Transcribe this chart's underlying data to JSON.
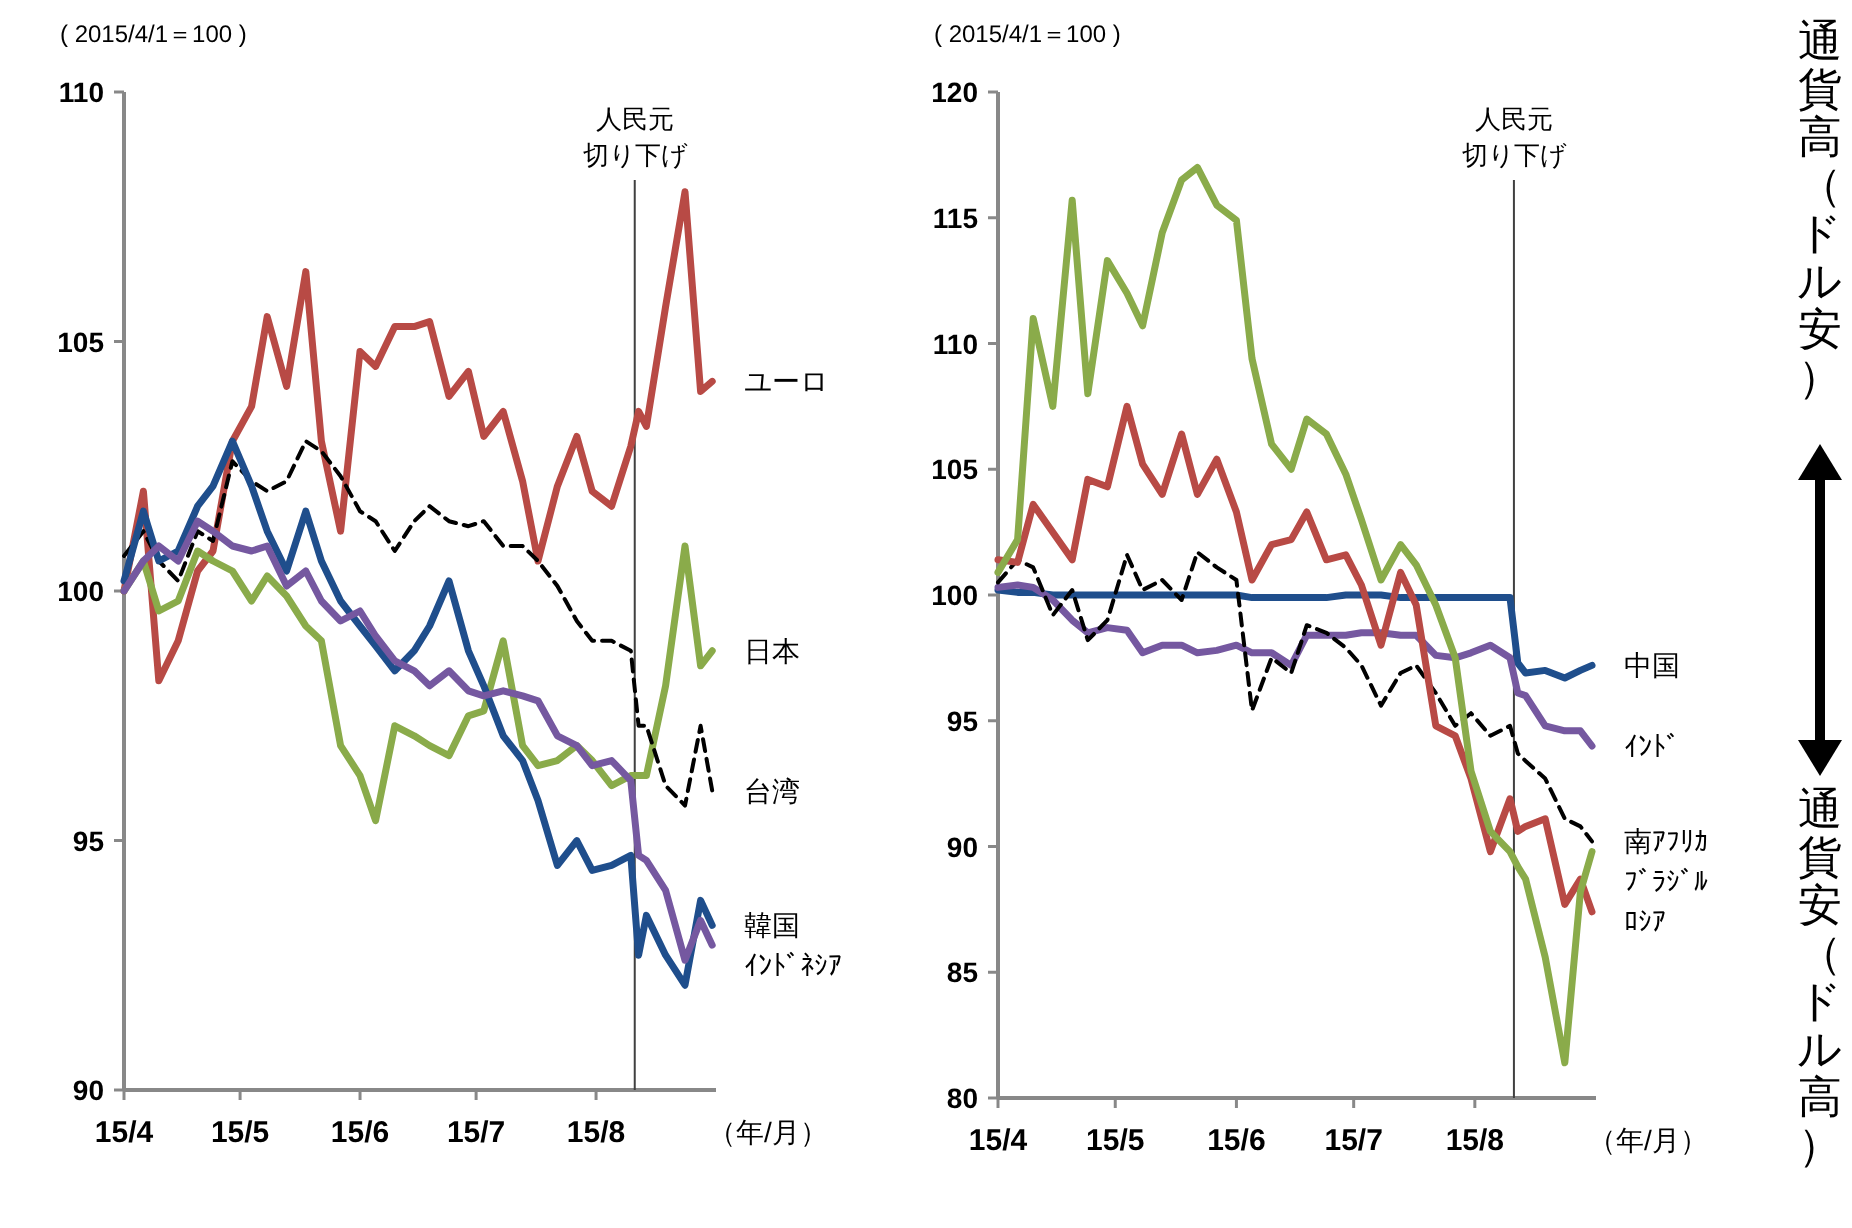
{
  "chart_data": [
    {
      "type": "line",
      "ylabel": "( 2015/4/1＝100 )",
      "xlabel": "（年/月）",
      "grid": false,
      "legend": false,
      "marker": "none",
      "x": [
        "2015-04-01",
        "2015-04-06",
        "2015-04-10",
        "2015-04-15",
        "2015-04-20",
        "2015-04-24",
        "2015-04-29",
        "2015-05-04",
        "2015-05-08",
        "2015-05-13",
        "2015-05-18",
        "2015-05-22",
        "2015-05-27",
        "2015-06-01",
        "2015-06-05",
        "2015-06-10",
        "2015-06-15",
        "2015-06-19",
        "2015-06-24",
        "2015-06-29",
        "2015-07-03",
        "2015-07-08",
        "2015-07-13",
        "2015-07-17",
        "2015-07-22",
        "2015-07-27",
        "2015-07-31",
        "2015-08-05",
        "2015-08-10",
        "2015-08-12",
        "2015-08-14",
        "2015-08-19",
        "2015-08-24",
        "2015-08-28",
        "2015-08-31"
      ],
      "xlim": [
        "2015-04-01",
        "2015-09-01"
      ],
      "xticks": [
        {
          "value": "2015-04-01",
          "label": "15/4"
        },
        {
          "value": "2015-05-01",
          "label": "15/5"
        },
        {
          "value": "2015-06-01",
          "label": "15/6"
        },
        {
          "value": "2015-07-01",
          "label": "15/7"
        },
        {
          "value": "2015-08-01",
          "label": "15/8"
        }
      ],
      "ylim": [
        90,
        110
      ],
      "yticks": [
        90,
        95,
        100,
        105,
        110
      ],
      "ref_lines": [
        {
          "axis": "x",
          "value": "2015-08-11",
          "label": "人民元切り下げ",
          "color": "#404040"
        }
      ],
      "series": [
        {
          "name": "ユーロ",
          "color": "#b84a45",
          "values": [
            100,
            102,
            98.2,
            99,
            100.4,
            100.8,
            103,
            103.7,
            105.5,
            104.1,
            106.4,
            103,
            101.2,
            104.8,
            104.5,
            105.3,
            105.3,
            105.4,
            103.9,
            104.4,
            103.1,
            103.6,
            102.2,
            100.6,
            102.1,
            103.1,
            102,
            101.7,
            102.9,
            103.6,
            103.3,
            105.7,
            108,
            104,
            104.2
          ]
        },
        {
          "name": "日本",
          "color": "#8aab4a",
          "values": [
            100,
            100.6,
            99.6,
            99.8,
            100.8,
            100.6,
            100.4,
            99.8,
            100.3,
            99.9,
            99.3,
            99,
            96.9,
            96.3,
            95.4,
            97.3,
            97.1,
            96.9,
            96.7,
            97.5,
            97.6,
            99,
            96.9,
            96.5,
            96.6,
            96.9,
            96.6,
            96.1,
            96.3,
            96.3,
            96.3,
            98.1,
            100.9,
            98.5,
            98.8
          ]
        },
        {
          "name": "台湾",
          "color": "#000000",
          "line_style": "dashed",
          "values": [
            100.7,
            101.2,
            100.6,
            100.2,
            101.2,
            101,
            102.6,
            102.2,
            102,
            102.2,
            103,
            102.8,
            102.3,
            101.6,
            101.4,
            100.8,
            101.4,
            101.7,
            101.4,
            101.3,
            101.4,
            100.9,
            100.9,
            100.6,
            100.1,
            99.4,
            99,
            99,
            98.8,
            97.3,
            97.3,
            96.1,
            95.7,
            97.3,
            96
          ]
        },
        {
          "name": "韓国",
          "color": "#1f4e8c",
          "values": [
            100.2,
            101.6,
            100.6,
            100.8,
            101.7,
            102.1,
            103,
            102.1,
            101.2,
            100.4,
            101.6,
            100.6,
            99.8,
            99.3,
            98.9,
            98.4,
            98.8,
            99.3,
            100.2,
            98.8,
            98.1,
            97.1,
            96.6,
            95.8,
            94.5,
            95,
            94.4,
            94.5,
            94.7,
            92.7,
            93.5,
            92.7,
            92.1,
            93.8,
            93.3
          ]
        },
        {
          "name": "ｲﾝﾄﾞﾈｼｱ",
          "color": "#7558a0",
          "values": [
            100,
            100.6,
            100.9,
            100.6,
            101.4,
            101.2,
            100.9,
            100.8,
            100.9,
            100.1,
            100.4,
            99.8,
            99.4,
            99.6,
            99.1,
            98.6,
            98.4,
            98.1,
            98.4,
            98,
            97.9,
            98,
            97.9,
            97.8,
            97.1,
            96.9,
            96.5,
            96.6,
            96.2,
            94.7,
            94.6,
            94,
            92.6,
            93.4,
            92.9
          ]
        }
      ]
    },
    {
      "type": "line",
      "ylabel": "( 2015/4/1＝100 )",
      "xlabel": "（年/月）",
      "grid": false,
      "legend": false,
      "marker": "none",
      "x": [
        "2015-04-01",
        "2015-04-06",
        "2015-04-10",
        "2015-04-15",
        "2015-04-20",
        "2015-04-24",
        "2015-04-29",
        "2015-05-04",
        "2015-05-08",
        "2015-05-13",
        "2015-05-18",
        "2015-05-22",
        "2015-05-27",
        "2015-06-01",
        "2015-06-05",
        "2015-06-10",
        "2015-06-15",
        "2015-06-19",
        "2015-06-24",
        "2015-06-29",
        "2015-07-03",
        "2015-07-08",
        "2015-07-13",
        "2015-07-17",
        "2015-07-22",
        "2015-07-27",
        "2015-07-31",
        "2015-08-05",
        "2015-08-10",
        "2015-08-12",
        "2015-08-14",
        "2015-08-19",
        "2015-08-24",
        "2015-08-28",
        "2015-08-31"
      ],
      "xlim": [
        "2015-04-01",
        "2015-09-01"
      ],
      "xticks": [
        {
          "value": "2015-04-01",
          "label": "15/4"
        },
        {
          "value": "2015-05-01",
          "label": "15/5"
        },
        {
          "value": "2015-06-01",
          "label": "15/6"
        },
        {
          "value": "2015-07-01",
          "label": "15/7"
        },
        {
          "value": "2015-08-01",
          "label": "15/8"
        }
      ],
      "ylim": [
        80,
        120
      ],
      "yticks": [
        80,
        85,
        90,
        95,
        100,
        105,
        110,
        115,
        120
      ],
      "ref_lines": [
        {
          "axis": "x",
          "value": "2015-08-11",
          "label": "人民元切り下げ",
          "color": "#404040"
        }
      ],
      "annotations": [
        "通貨高（ドル安）",
        "通貨安（ドル高）"
      ],
      "series": [
        {
          "name": "中国",
          "color": "#1f4e8c",
          "values": [
            100.2,
            100.1,
            100.1,
            100,
            100,
            100,
            100,
            100,
            100,
            100,
            100,
            100,
            100,
            100,
            99.9,
            99.9,
            99.9,
            99.9,
            99.9,
            100,
            100,
            100,
            99.9,
            99.9,
            99.9,
            99.9,
            99.9,
            99.9,
            99.9,
            97.3,
            96.9,
            97,
            96.7,
            97,
            97.2
          ]
        },
        {
          "name": "ｲﾝﾄﾞ",
          "color": "#7558a0",
          "values": [
            100.3,
            100.4,
            100.3,
            99.8,
            99,
            98.5,
            98.7,
            98.6,
            97.7,
            98,
            98,
            97.7,
            97.8,
            98,
            97.7,
            97.7,
            97.2,
            98.4,
            98.4,
            98.4,
            98.5,
            98.5,
            98.4,
            98.4,
            97.6,
            97.5,
            97.7,
            98,
            97.5,
            96.1,
            96,
            94.8,
            94.6,
            94.6,
            94
          ]
        },
        {
          "name": "南ｱﾌﾘｶ",
          "color": "#000000",
          "line_style": "dashed",
          "values": [
            100.5,
            101.4,
            101.1,
            99.2,
            100.2,
            98.2,
            99,
            101.6,
            100.2,
            100.6,
            99.8,
            101.7,
            101.1,
            100.6,
            95.4,
            97.5,
            96.9,
            98.8,
            98.5,
            97.9,
            97.2,
            95.6,
            96.9,
            97.2,
            96.1,
            94.8,
            95.3,
            94.4,
            94.8,
            93.7,
            93.4,
            92.7,
            91.1,
            90.8,
            90.2
          ]
        },
        {
          "name": "ﾛｼｱ",
          "color": "#b84a45",
          "values": [
            101.4,
            101.3,
            103.6,
            102.5,
            101.4,
            104.6,
            104.3,
            107.5,
            105.2,
            104,
            106.4,
            104,
            105.4,
            103.3,
            100.6,
            102,
            102.2,
            103.3,
            101.4,
            101.6,
            100.4,
            98,
            100.9,
            99.6,
            94.8,
            94.4,
            92.7,
            89.8,
            91.9,
            90.6,
            90.8,
            91.1,
            87.7,
            88.7,
            87.4
          ]
        },
        {
          "name": "ﾌﾞﾗｼﾞﾙ",
          "color": "#8aab4a",
          "values": [
            100.9,
            102.2,
            111,
            107.5,
            115.7,
            108,
            113.3,
            112,
            110.7,
            114.4,
            116.5,
            117,
            115.5,
            114.9,
            109.4,
            106,
            105,
            107,
            106.4,
            104.8,
            103,
            100.6,
            102,
            101.2,
            99.6,
            97.5,
            93,
            90.6,
            89.8,
            89.2,
            88.7,
            85.6,
            81.4,
            88.2,
            89.8
          ]
        }
      ]
    }
  ]
}
